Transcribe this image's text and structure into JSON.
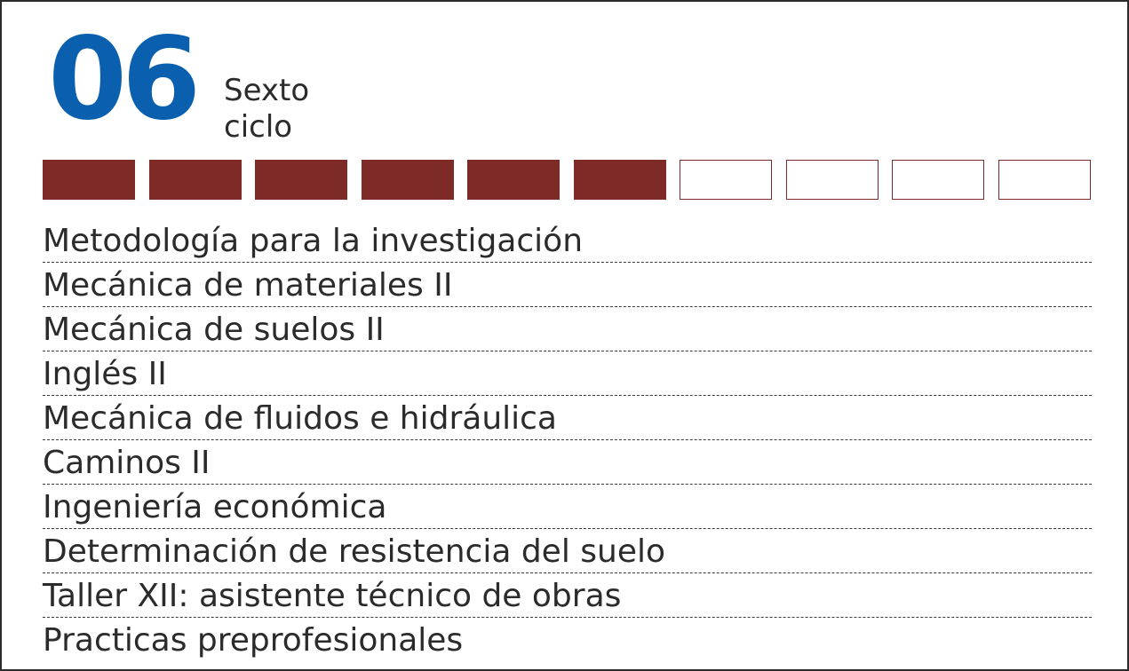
{
  "header": {
    "cycle_number": "06",
    "cycle_label_line1": "Sexto",
    "cycle_label_line2": "ciclo"
  },
  "progress": {
    "completed": 6,
    "total": 10
  },
  "courses": [
    {
      "name": "Metodología para la investigación"
    },
    {
      "name": "Mecánica de materiales II"
    },
    {
      "name": "Mecánica de suelos II"
    },
    {
      "name": "Inglés II"
    },
    {
      "name": "Mecánica de fluidos e hidráulica"
    },
    {
      "name": "Caminos II"
    },
    {
      "name": "Ingeniería económica"
    },
    {
      "name": "Determinación de resistencia del suelo"
    },
    {
      "name": "Taller XII: asistente técnico de obras"
    },
    {
      "name": "Practicas preprofesionales"
    }
  ],
  "colors": {
    "number": "#0a5fae",
    "progress_filled": "#7e2b28",
    "text": "#2b2b2b"
  }
}
